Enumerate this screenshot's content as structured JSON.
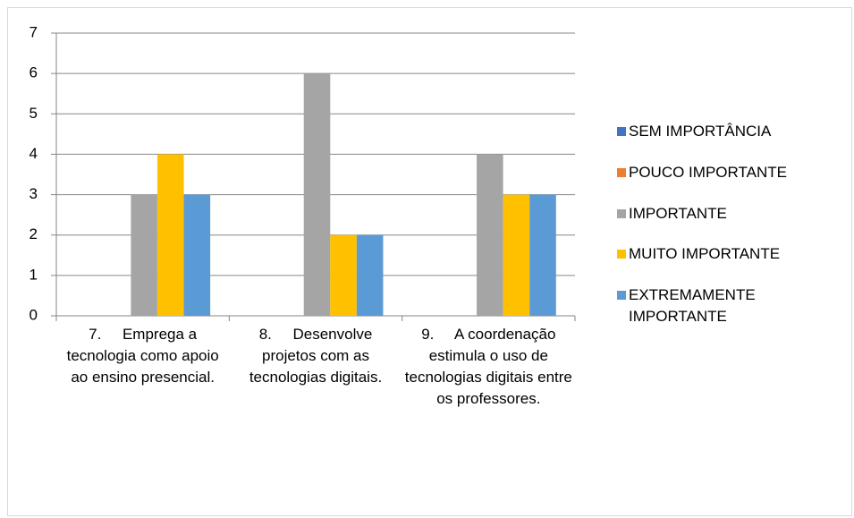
{
  "chart_data": {
    "type": "bar",
    "categories": [
      "7.     Emprega a tecnologia como apoio ao ensino presencial.",
      "8.     Desenvolve projetos com as tecnologias digitais.",
      "9.     A coordenação estimula o uso de tecnologias digitais entre os professores."
    ],
    "series": [
      {
        "name": "SEM IMPORTÂNCIA",
        "color": "#4472c4",
        "values": [
          0,
          0,
          0
        ]
      },
      {
        "name": "POUCO IMPORTANTE",
        "color": "#ed7d31",
        "values": [
          0,
          0,
          0
        ]
      },
      {
        "name": "IMPORTANTE",
        "color": "#a5a5a5",
        "values": [
          3,
          6,
          4
        ]
      },
      {
        "name": "MUITO IMPORTANTE",
        "color": "#ffc000",
        "values": [
          4,
          2,
          3
        ]
      },
      {
        "name": "EXTREMAMENTE IMPORTANTE",
        "color": "#5b9bd5",
        "values": [
          3,
          2,
          3
        ]
      }
    ],
    "ylim": [
      0,
      7
    ],
    "yticks": [
      0,
      1,
      2,
      3,
      4,
      5,
      6,
      7
    ],
    "grid": true,
    "legend": "right"
  }
}
